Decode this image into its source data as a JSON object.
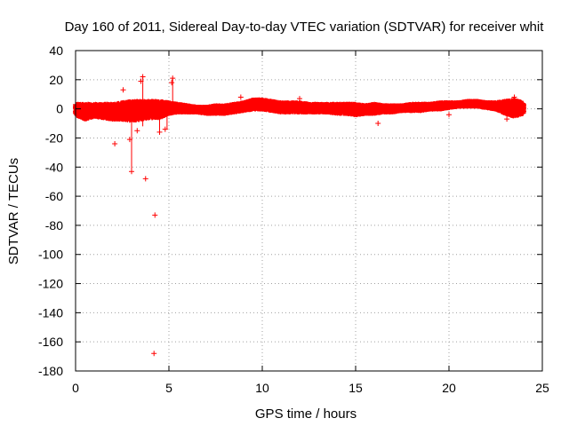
{
  "chart_data": {
    "type": "scatter",
    "title": "Day 160 of 2011, Sidereal Day-to-day VTEC variation (SDTVAR) for receiver whit",
    "xlabel": "GPS time / hours",
    "ylabel": "SDTVAR / TECUs",
    "xlim": [
      0,
      25
    ],
    "ylim": [
      -180,
      40
    ],
    "xticks": [
      0,
      5,
      10,
      15,
      20,
      25
    ],
    "yticks": [
      40,
      20,
      0,
      -20,
      -40,
      -60,
      -80,
      -100,
      -120,
      -140,
      -160,
      -180
    ],
    "grid": true,
    "marker": "+",
    "color": "#ff0000",
    "series": [
      {
        "name": "SDTVAR",
        "dense_band": [
          [
            0.0,
            -4,
            3
          ],
          [
            0.5,
            -7,
            3
          ],
          [
            1.0,
            -5,
            3
          ],
          [
            1.5,
            -6,
            3
          ],
          [
            2.0,
            -7,
            3
          ],
          [
            2.5,
            -7,
            4
          ],
          [
            3.0,
            -8,
            5
          ],
          [
            3.5,
            -7,
            5
          ],
          [
            4.0,
            -6,
            5
          ],
          [
            4.5,
            -6,
            5
          ],
          [
            5.0,
            -3,
            4
          ],
          [
            5.5,
            -2,
            3
          ],
          [
            6.0,
            -2,
            2
          ],
          [
            6.5,
            -2,
            1
          ],
          [
            7.0,
            -3,
            1
          ],
          [
            7.5,
            -3,
            2
          ],
          [
            8.0,
            -3,
            2
          ],
          [
            8.5,
            -2,
            3
          ],
          [
            9.0,
            -1,
            4
          ],
          [
            9.5,
            0,
            6
          ],
          [
            10.0,
            0,
            6
          ],
          [
            10.5,
            -1,
            5
          ],
          [
            11.0,
            -2,
            4
          ],
          [
            11.5,
            -2,
            4
          ],
          [
            12.0,
            -2,
            4
          ],
          [
            12.5,
            -2,
            3
          ],
          [
            13.0,
            -2,
            3
          ],
          [
            13.5,
            -2,
            3
          ],
          [
            14.0,
            -3,
            3
          ],
          [
            14.5,
            -3,
            3
          ],
          [
            15.0,
            -4,
            3
          ],
          [
            15.5,
            -3,
            2
          ],
          [
            16.0,
            -3,
            3
          ],
          [
            16.5,
            -2,
            2
          ],
          [
            17.0,
            -2,
            2
          ],
          [
            17.5,
            -1,
            2
          ],
          [
            18.0,
            -1,
            3
          ],
          [
            18.5,
            -1,
            3
          ],
          [
            19.0,
            0,
            3
          ],
          [
            19.5,
            0,
            4
          ],
          [
            20.0,
            1,
            4
          ],
          [
            20.5,
            2,
            4
          ],
          [
            21.0,
            2,
            5
          ],
          [
            21.5,
            2,
            5
          ],
          [
            22.0,
            1,
            4
          ],
          [
            22.5,
            0,
            4
          ],
          [
            23.0,
            -3,
            5
          ],
          [
            23.5,
            -5,
            6
          ],
          [
            24.0,
            -3,
            4
          ]
        ],
        "outliers": [
          {
            "x": 2.1,
            "y": -24
          },
          {
            "x": 2.55,
            "y": 13
          },
          {
            "x": 2.9,
            "y": -21
          },
          {
            "x": 3.0,
            "y": -43
          },
          {
            "x": 3.3,
            "y": -15
          },
          {
            "x": 3.5,
            "y": 19
          },
          {
            "x": 3.6,
            "y": 22
          },
          {
            "x": 3.75,
            "y": -48
          },
          {
            "x": 4.25,
            "y": -73
          },
          {
            "x": 4.2,
            "y": -168
          },
          {
            "x": 4.5,
            "y": -16
          },
          {
            "x": 4.8,
            "y": -14
          },
          {
            "x": 5.15,
            "y": 18
          },
          {
            "x": 5.2,
            "y": 21
          },
          {
            "x": 8.85,
            "y": 8
          },
          {
            "x": 12.0,
            "y": 7
          },
          {
            "x": 16.2,
            "y": -10
          },
          {
            "x": 20.0,
            "y": -4
          },
          {
            "x": 23.5,
            "y": 8
          },
          {
            "x": 23.1,
            "y": -7
          }
        ]
      }
    ]
  }
}
